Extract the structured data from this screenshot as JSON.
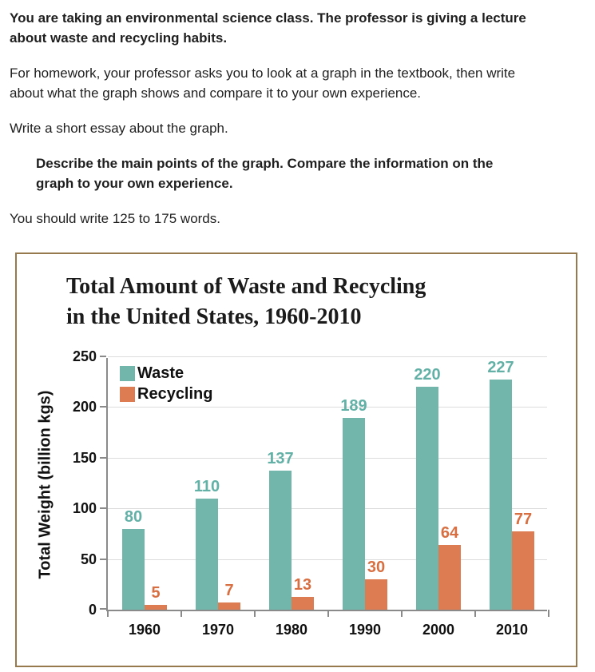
{
  "instructions": {
    "intro": "You are taking an environmental science class. The professor is giving a lecture about waste and recycling habits.",
    "homework": "For homework, your professor asks you to look at a graph in the textbook, then write about what the graph shows and compare it to your own experience.",
    "task": "Write a short essay about the graph.",
    "prompt": "Describe the main points of the graph. Compare the information on the graph to your own experience.",
    "word_count": "You should write 125 to 175 words."
  },
  "chart_data": {
    "type": "bar",
    "title": "Total Amount of Waste and Recycling in the United States, 1960-2010",
    "title_line1": "Total Amount of Waste and Recycling",
    "title_line2": "in the United States, 1960-2010",
    "categories": [
      "1960",
      "1970",
      "1980",
      "1990",
      "2000",
      "2010"
    ],
    "series": [
      {
        "name": "Waste",
        "color": "#72b5ab",
        "label_color": "#62b0a6",
        "values": [
          80,
          110,
          137,
          189,
          220,
          227
        ]
      },
      {
        "name": "Recycling",
        "color": "#dd7c53",
        "label_color": "#d76f42",
        "values": [
          5,
          7,
          13,
          30,
          64,
          77
        ]
      }
    ],
    "xlabel": "",
    "ylabel": "Total Weight (billion kgs)",
    "ylim": [
      0,
      250
    ],
    "yticks": [
      0,
      50,
      100,
      150,
      200,
      250
    ],
    "grid": true,
    "legend_position": "top-left"
  },
  "colors": {
    "panel_border": "#967a4e",
    "axis": "#8a8a8a",
    "gridline": "#dcdcdc",
    "text": "#1f1f1f"
  }
}
